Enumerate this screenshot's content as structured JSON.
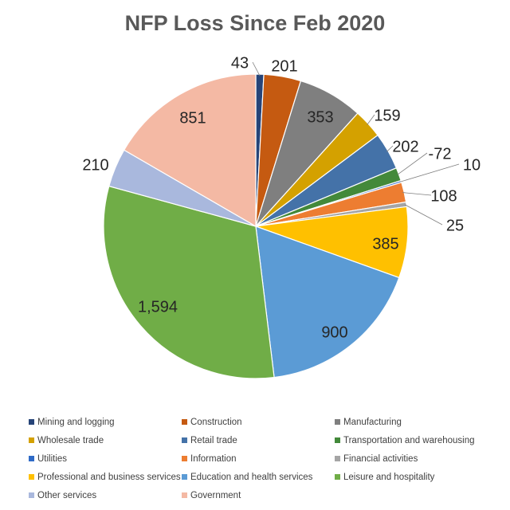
{
  "chart_data": {
    "type": "pie",
    "title": "NFP Loss Since Feb 2020",
    "legend_position": "bottom",
    "slices": [
      {
        "name": "Mining and logging",
        "value": 43,
        "label": "43",
        "color": "#264478"
      },
      {
        "name": "Construction",
        "value": 201,
        "label": "201",
        "color": "#C55A11"
      },
      {
        "name": "Manufacturing",
        "value": 353,
        "label": "353",
        "color": "#7F7F7F"
      },
      {
        "name": "Wholesale trade",
        "value": 159,
        "label": "159",
        "color": "#D4A100"
      },
      {
        "name": "Retail trade",
        "value": 202,
        "label": "202",
        "color": "#4472A8"
      },
      {
        "name": "Transportation and warehousing",
        "value": -72,
        "label": "-72",
        "color": "#43893A"
      },
      {
        "name": "Utilities",
        "value": 10,
        "label": "10",
        "color": "#2F6BC7"
      },
      {
        "name": "Information",
        "value": 108,
        "label": "108",
        "color": "#ED7D31"
      },
      {
        "name": "Financial activities",
        "value": 25,
        "label": "25",
        "color": "#A5A5A5"
      },
      {
        "name": "Professional and business services",
        "value": 385,
        "label": "385",
        "color": "#FFC000"
      },
      {
        "name": "Education and health services",
        "value": 900,
        "label": "900",
        "color": "#5B9BD5"
      },
      {
        "name": "Leisure and hospitality",
        "value": 1594,
        "label": "1,594",
        "color": "#70AD47"
      },
      {
        "name": "Other services",
        "value": 210,
        "label": "210",
        "color": "#A9B8DD"
      },
      {
        "name": "Government",
        "value": 851,
        "label": "851",
        "color": "#F4B9A4"
      }
    ]
  }
}
